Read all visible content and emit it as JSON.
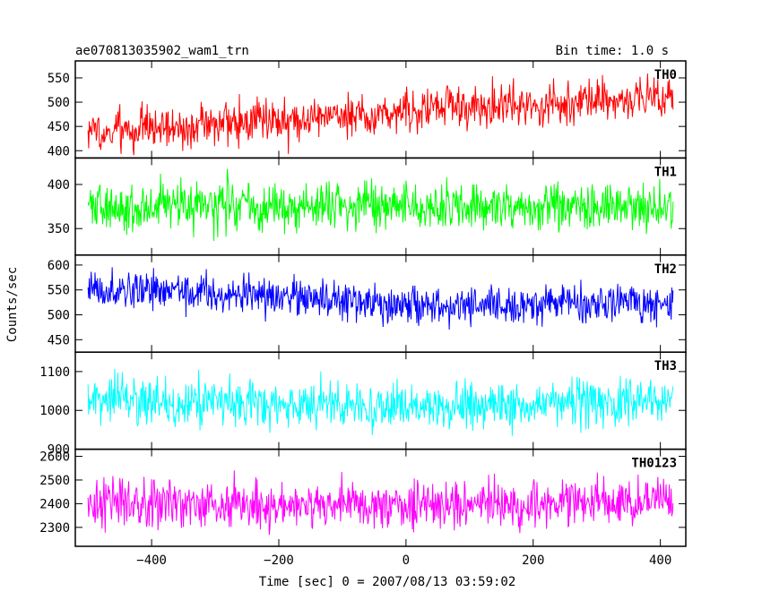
{
  "header": {
    "title": "ae070813035902_wam1_trn",
    "bin_time": "Bin time: 1.0 s"
  },
  "chart_data": {
    "type": "line",
    "title": "ae070813035902_wam1_trn",
    "ylabel": "Counts/sec",
    "xlabel": "Time [sec] 0 = 2007/08/13 03:59:02",
    "xlim": [
      -520,
      440
    ],
    "x_range": [
      -500,
      420
    ],
    "x_ticks": [
      -400,
      -200,
      0,
      200,
      400
    ],
    "x_tick_labels": [
      "−400",
      "−200",
      "0",
      "200",
      "400"
    ],
    "grid": false,
    "panels": [
      {
        "name": "TH0",
        "color": "#ff0000",
        "ylim": [
          385,
          585
        ],
        "y_ticks": [
          400,
          450,
          500,
          550
        ],
        "trend": [
          [
            -500,
            440
          ],
          [
            -300,
            455
          ],
          [
            -100,
            470
          ],
          [
            100,
            490
          ],
          [
            300,
            505
          ],
          [
            420,
            510
          ]
        ],
        "noise": 22
      },
      {
        "name": "TH1",
        "color": "#00ff00",
        "ylim": [
          320,
          430
        ],
        "y_ticks": [
          350,
          400
        ],
        "trend": [
          [
            -500,
            375
          ],
          [
            420,
            375
          ]
        ],
        "noise": 14
      },
      {
        "name": "TH2",
        "color": "#0000ff",
        "ylim": [
          425,
          620
        ],
        "y_ticks": [
          450,
          500,
          550,
          600
        ],
        "trend": [
          [
            -500,
            555
          ],
          [
            -250,
            540
          ],
          [
            0,
            520
          ],
          [
            200,
            520
          ],
          [
            420,
            525
          ]
        ],
        "noise": 20
      },
      {
        "name": "TH3",
        "color": "#00ffff",
        "ylim": [
          900,
          1150
        ],
        "y_ticks": [
          900,
          1000,
          1100
        ],
        "trend": [
          [
            -500,
            1030
          ],
          [
            -200,
            1015
          ],
          [
            0,
            1005
          ],
          [
            200,
            1015
          ],
          [
            420,
            1030
          ]
        ],
        "noise": 30
      },
      {
        "name": "TH0123",
        "color": "#ff00ff",
        "ylim": [
          2220,
          2630
        ],
        "y_ticks": [
          2300,
          2400,
          2500,
          2600
        ],
        "trend": [
          [
            -500,
            2400
          ],
          [
            0,
            2390
          ],
          [
            420,
            2420
          ]
        ],
        "noise": 50
      }
    ]
  }
}
